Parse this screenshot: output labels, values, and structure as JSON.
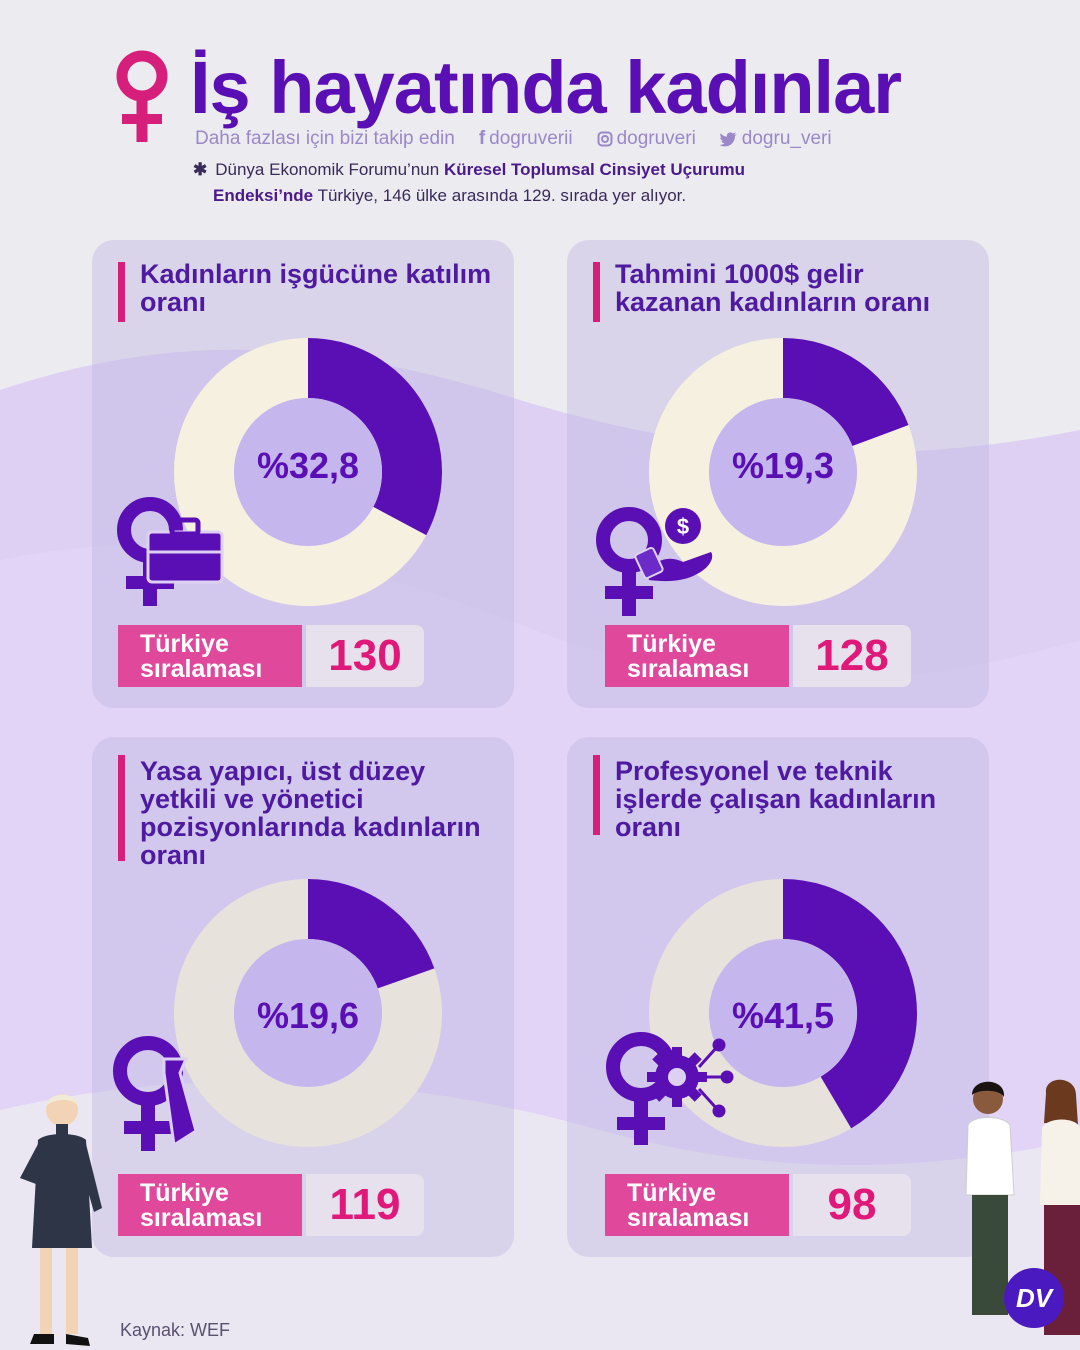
{
  "header": {
    "title": "İş hayatında kadınlar",
    "follow_text": "Daha fazlası için bizi takip edin",
    "facebook": "dogruverii",
    "instagram": "dogruveri",
    "twitter": "dogru_veri",
    "note_prefix": "Dünya Ekonomik Forumu’nun",
    "note_bold_1": "Küresel Toplumsal Cinsiyet Uçurumu",
    "note_bold_2": "Endeksi’nde",
    "note_suffix": "Türkiye, 146 ülke arasında 129. sırada yer alıyor."
  },
  "colors": {
    "accent_purple": "#5a0fb4",
    "donut_fill": "#5a0fb4",
    "donut_rest_light": "#f5f0e0",
    "donut_rest_grey": "#e8e2dc",
    "pink": "#e0489b",
    "rank_pink": "#e0187a"
  },
  "rank_label": "Türkiye sıralaması",
  "rank_label_line1": "Türkiye",
  "rank_label_line2": "sıralaması",
  "chart_data": [
    {
      "type": "pie",
      "variant": "donut",
      "title": "Kadınların işgücüne katılım oranı",
      "value": 32.8,
      "label": "%32,8",
      "rank": "130",
      "icon": "venus-briefcase-icon"
    },
    {
      "type": "pie",
      "variant": "donut",
      "title": "Tahmini 1000$ gelir kazanan kadınların oranı",
      "value": 19.3,
      "label": "%19,3",
      "rank": "128",
      "icon": "venus-money-icon"
    },
    {
      "type": "pie",
      "variant": "donut",
      "title": "Yasa yapıcı, üst düzey yetkili ve yönetici pozisyonlarında kadınların oranı",
      "value": 19.6,
      "label": "%19,6",
      "rank": "119",
      "icon": "venus-tie-icon"
    },
    {
      "type": "pie",
      "variant": "donut",
      "title": "Profesyonel ve teknik işlerde çalışan kadınların oranı",
      "value": 41.5,
      "label": "%41,5",
      "rank": "98",
      "icon": "venus-gear-icon"
    }
  ],
  "source": "Kaynak: WEF",
  "logo_text": "DV"
}
